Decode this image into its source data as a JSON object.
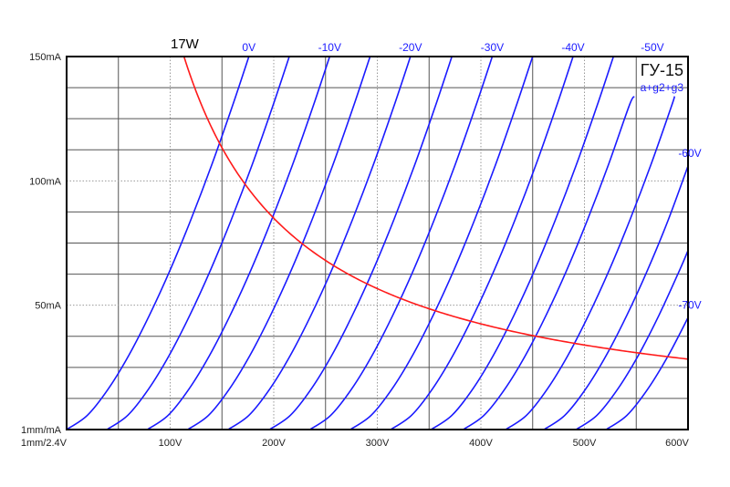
{
  "chart_data": {
    "type": "line",
    "title": "ГУ-15",
    "subtitle": "a+g2+g3",
    "x_unit_label": "1mm/2.4V",
    "y_unit_label": "1mm/mA",
    "xlim": [
      0,
      600
    ],
    "ylim": [
      0,
      150
    ],
    "x_ticks": [
      {
        "value": 100,
        "label": "100V"
      },
      {
        "value": 200,
        "label": "200V"
      },
      {
        "value": 300,
        "label": "300V"
      },
      {
        "value": 400,
        "label": "400V"
      },
      {
        "value": 500,
        "label": "500V"
      },
      {
        "value": 600,
        "label": "600V"
      }
    ],
    "y_ticks": [
      {
        "value": 150,
        "label": "150mA"
      },
      {
        "value": 100,
        "label": "100mA"
      },
      {
        "value": 50,
        "label": "50mA"
      }
    ],
    "grid": true,
    "grid_step_x": 50,
    "grid_step_y": 12.5,
    "curve_labels": [
      {
        "text": "0V",
        "series": 0
      },
      {
        "text": "-10V",
        "series": 2
      },
      {
        "text": "-20V",
        "series": 4
      },
      {
        "text": "-30V",
        "series": 6
      },
      {
        "text": "-40V",
        "series": 8
      },
      {
        "text": "-50V",
        "series": 10
      },
      {
        "text": "-60V",
        "series": 12
      },
      {
        "text": "-70V",
        "series": 14
      }
    ],
    "series": [
      {
        "grid_voltage": 0,
        "points": [
          [
            0,
            0
          ],
          [
            20,
            5.7
          ],
          [
            40,
            16.2
          ],
          [
            60,
            29.8
          ],
          [
            80,
            46
          ],
          [
            100,
            64.2
          ],
          [
            120,
            84.4
          ],
          [
            140,
            106.3
          ],
          [
            160,
            130
          ],
          [
            176,
            150
          ]
        ]
      },
      {
        "grid_voltage": -5,
        "points": [
          [
            39,
            0
          ],
          [
            59,
            5.7
          ],
          [
            79,
            16.2
          ],
          [
            99,
            29.8
          ],
          [
            119,
            46
          ],
          [
            139,
            64.2
          ],
          [
            159,
            84.4
          ],
          [
            179,
            106.3
          ],
          [
            199,
            130
          ],
          [
            215,
            150
          ]
        ]
      },
      {
        "grid_voltage": -10,
        "points": [
          [
            78,
            0
          ],
          [
            98,
            5.7
          ],
          [
            118,
            16.2
          ],
          [
            138,
            29.8
          ],
          [
            158,
            46
          ],
          [
            178,
            64.2
          ],
          [
            198,
            84.4
          ],
          [
            218,
            106.3
          ],
          [
            238,
            130
          ],
          [
            254,
            150
          ]
        ]
      },
      {
        "grid_voltage": -15,
        "points": [
          [
            117,
            0
          ],
          [
            137,
            5.7
          ],
          [
            157,
            16.2
          ],
          [
            177,
            29.8
          ],
          [
            197,
            46
          ],
          [
            217,
            64.2
          ],
          [
            237,
            84.4
          ],
          [
            257,
            106.3
          ],
          [
            277,
            130
          ],
          [
            293,
            150
          ]
        ]
      },
      {
        "grid_voltage": -20,
        "points": [
          [
            156,
            0
          ],
          [
            176,
            5.7
          ],
          [
            196,
            16.2
          ],
          [
            216,
            29.8
          ],
          [
            236,
            46
          ],
          [
            256,
            64.2
          ],
          [
            276,
            84.4
          ],
          [
            296,
            106.3
          ],
          [
            316,
            130
          ],
          [
            332,
            150
          ]
        ]
      },
      {
        "grid_voltage": -25,
        "points": [
          [
            196,
            0
          ],
          [
            216,
            5.7
          ],
          [
            236,
            16.2
          ],
          [
            256,
            29.8
          ],
          [
            276,
            46
          ],
          [
            296,
            64.2
          ],
          [
            316,
            84.4
          ],
          [
            336,
            106.3
          ],
          [
            356,
            130
          ],
          [
            372,
            150
          ]
        ]
      },
      {
        "grid_voltage": -30,
        "points": [
          [
            235,
            0
          ],
          [
            255,
            5.7
          ],
          [
            275,
            16.2
          ],
          [
            295,
            29.8
          ],
          [
            315,
            46
          ],
          [
            335,
            64.2
          ],
          [
            355,
            84.4
          ],
          [
            375,
            106.3
          ],
          [
            395,
            130
          ],
          [
            411,
            150
          ]
        ]
      },
      {
        "grid_voltage": -35,
        "points": [
          [
            274,
            0
          ],
          [
            294,
            5.7
          ],
          [
            314,
            16.2
          ],
          [
            334,
            29.8
          ],
          [
            354,
            46
          ],
          [
            374,
            64.2
          ],
          [
            394,
            84.4
          ],
          [
            414,
            106.3
          ],
          [
            434,
            130
          ],
          [
            450,
            150
          ]
        ]
      },
      {
        "grid_voltage": -40,
        "points": [
          [
            313,
            0
          ],
          [
            333,
            5.7
          ],
          [
            353,
            16.2
          ],
          [
            373,
            29.8
          ],
          [
            393,
            46
          ],
          [
            413,
            64.2
          ],
          [
            433,
            84.4
          ],
          [
            453,
            106.3
          ],
          [
            473,
            130
          ],
          [
            489,
            150
          ]
        ]
      },
      {
        "grid_voltage": -45,
        "points": [
          [
            352,
            0
          ],
          [
            372,
            5.7
          ],
          [
            392,
            16.2
          ],
          [
            412,
            29.8
          ],
          [
            432,
            46
          ],
          [
            452,
            64.2
          ],
          [
            472,
            84.4
          ],
          [
            492,
            106.3
          ],
          [
            512,
            130
          ],
          [
            528,
            150
          ]
        ]
      },
      {
        "grid_voltage": -50,
        "points": [
          [
            383,
            0
          ],
          [
            403,
            5.7
          ],
          [
            423,
            16.2
          ],
          [
            443,
            29.8
          ],
          [
            463,
            46
          ],
          [
            483,
            64.2
          ],
          [
            503,
            84.4
          ],
          [
            523,
            106.3
          ],
          [
            543,
            130
          ],
          [
            548,
            134
          ]
        ]
      },
      {
        "grid_voltage": -55,
        "points": [
          [
            424,
            0
          ],
          [
            444,
            5.7
          ],
          [
            464,
            16.2
          ],
          [
            484,
            29.8
          ],
          [
            504,
            46
          ],
          [
            524,
            64.2
          ],
          [
            544,
            84.4
          ],
          [
            564,
            106.3
          ],
          [
            584,
            130
          ],
          [
            587,
            134
          ]
        ]
      },
      {
        "grid_voltage": -60,
        "points": [
          [
            461,
            0
          ],
          [
            481,
            5.7
          ],
          [
            501,
            16.2
          ],
          [
            521,
            29.8
          ],
          [
            541,
            46
          ],
          [
            561,
            64.2
          ],
          [
            581,
            84.4
          ],
          [
            600,
            106
          ]
        ]
      },
      {
        "grid_voltage": -65,
        "points": [
          [
            492,
            0
          ],
          [
            512,
            5.7
          ],
          [
            532,
            16.2
          ],
          [
            552,
            29.8
          ],
          [
            572,
            46
          ],
          [
            592,
            64.2
          ],
          [
            600,
            72
          ]
        ]
      },
      {
        "grid_voltage": -70,
        "points": [
          [
            521,
            0
          ],
          [
            541,
            5.7
          ],
          [
            561,
            16.2
          ],
          [
            581,
            29.8
          ],
          [
            600,
            45
          ]
        ]
      }
    ],
    "power_curve": {
      "label": "17W",
      "watts": 17
    },
    "colors": {
      "curves": "#1a1aff",
      "power_curve": "#ff1a1a",
      "grid": "#555555",
      "frame": "#000000"
    }
  }
}
